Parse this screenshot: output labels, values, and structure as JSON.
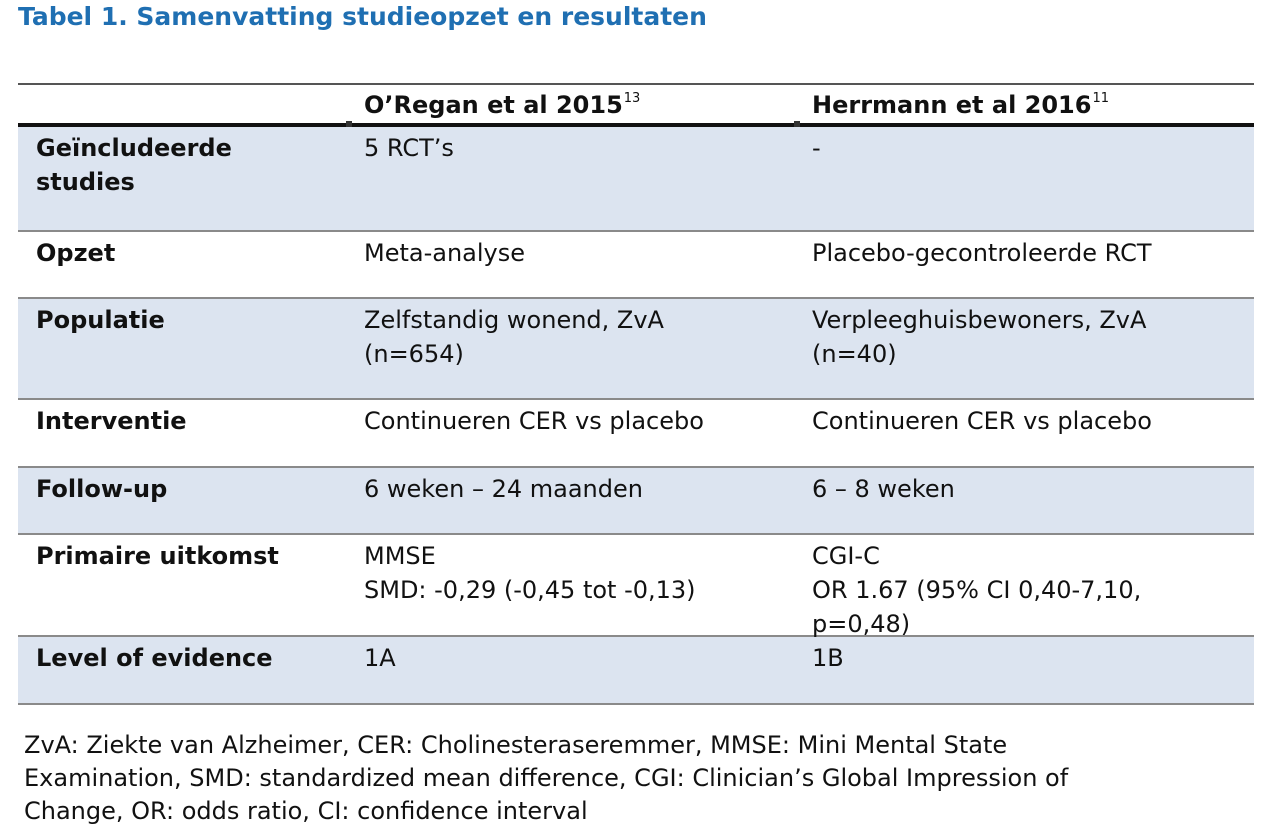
{
  "title": "Tabel 1. Samenvatting studieopzet en resultaten",
  "header": {
    "col1": "O’Regan et al 2015",
    "col1_ref": "13",
    "col2": "Herrmann et al 2016",
    "col2_ref": "11"
  },
  "rows": [
    {
      "label_lines": [
        "Geïncludeerde",
        "studies"
      ],
      "c1_lines": [
        "5 RCT’s"
      ],
      "c2_lines": [
        "-"
      ]
    },
    {
      "label_lines": [
        "Opzet"
      ],
      "c1_lines": [
        "Meta-analyse"
      ],
      "c2_lines": [
        "Placebo-gecontroleerde RCT"
      ]
    },
    {
      "label_lines": [
        "Populatie"
      ],
      "c1_lines": [
        "Zelfstandig wonend, ZvA",
        "(n=654)"
      ],
      "c2_lines": [
        "Verpleeghuisbewoners, ZvA",
        "(n=40)"
      ]
    },
    {
      "label_lines": [
        "Interventie"
      ],
      "c1_lines": [
        "Continueren CER vs placebo"
      ],
      "c2_lines": [
        "Continueren CER vs placebo"
      ]
    },
    {
      "label_lines": [
        "Follow-up"
      ],
      "c1_lines": [
        "6 weken – 24 maanden"
      ],
      "c2_lines": [
        "6 – 8 weken"
      ]
    },
    {
      "label_lines": [
        "Primaire uitkomst"
      ],
      "c1_lines": [
        "MMSE",
        "SMD: -0,29 (-0,45 tot -0,13)"
      ],
      "c2_lines": [
        "CGI-C",
        "OR 1.67 (95% CI 0,40-7,10,",
        "p=0,48)"
      ]
    },
    {
      "label_lines": [
        "Level of evidence"
      ],
      "c1_lines": [
        "1A"
      ],
      "c2_lines": [
        "1B"
      ]
    }
  ],
  "footnote": {
    "lines": [
      "ZvA: Ziekte van Alzheimer, CER: Cholinesteraseremmer, MMSE: Mini Mental State",
      "Examination, SMD: standardized mean difference, CGI: Clinician’s Global Impression of",
      "Change, OR: odds ratio, CI: confidence interval"
    ]
  },
  "colors": {
    "title": "#1f6fb2",
    "row_shade": "#dce4f0"
  }
}
